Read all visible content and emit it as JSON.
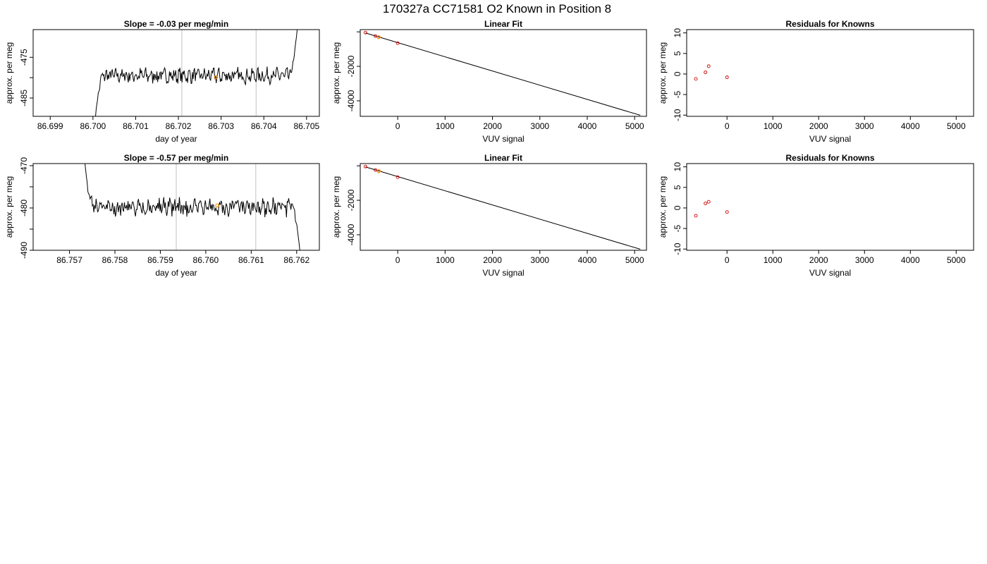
{
  "main_title": "170327a     CC71581   O2 Known in Position  8",
  "colors": {
    "line": "#000000",
    "vline": "#cccccc",
    "residual": "#cc0000",
    "highlight": "#ff9900",
    "frame": "#000000"
  },
  "chart_data": [
    {
      "type": "line",
      "title": "Slope =  -0.03  per meg/min",
      "xlabel": "day of year",
      "ylabel": "approx. per meg",
      "xlim": [
        86.6986,
        86.7053
      ],
      "ylim": [
        -489.5,
        -468.2
      ],
      "xticks": [
        "86.699",
        "86.700",
        "86.701",
        "86.702",
        "86.703",
        "86.704",
        "86.705"
      ],
      "yticks": [
        "-475",
        "-485"
      ],
      "yticks_minor": [
        -480
      ],
      "vlines": [
        86.70208,
        86.70382
      ],
      "highlight_point": {
        "x": 86.70288,
        "y": -479.9
      },
      "trace": {
        "x_start": 86.70006,
        "x_end": 86.70478,
        "y_first": -489.5,
        "y_last": -468.2,
        "level": -479.5,
        "amplitude": 1.5,
        "n": 290
      }
    },
    {
      "type": "scatter",
      "title": "Linear Fit",
      "xlabel": "VUV signal",
      "ylabel": "approx. per meg",
      "xlim": [
        -790,
        5250
      ],
      "ylim": [
        -4900,
        130
      ],
      "xticks": [
        "0",
        "1000",
        "2000",
        "3000",
        "4000",
        "5000"
      ],
      "yticks": [
        "-2000",
        "-4000"
      ],
      "yticks_minor": [
        0
      ],
      "fit_line": {
        "x": [
          -680,
          5120
        ],
        "y": [
          -65,
          -4840
        ]
      },
      "points": [
        {
          "x": -680,
          "y": -45
        },
        {
          "x": -470,
          "y": -245
        },
        {
          "x": -400,
          "y": -310
        },
        {
          "x": 0,
          "y": -660
        }
      ],
      "highlight_point": {
        "x": -400,
        "y": -310
      }
    },
    {
      "type": "scatter",
      "title": "Residuals for Knowns",
      "xlabel": "VUV signal",
      "ylabel": "approx. per meg",
      "xlim": [
        -880,
        5380
      ],
      "ylim": [
        -10.3,
        10.8
      ],
      "xticks": [
        "0",
        "1000",
        "2000",
        "3000",
        "4000",
        "5000"
      ],
      "yticks": [
        "10",
        "5",
        "0",
        "-5",
        "-10"
      ],
      "points": [
        {
          "x": -680,
          "y": -1.2
        },
        {
          "x": -470,
          "y": 0.4
        },
        {
          "x": -400,
          "y": 1.9
        },
        {
          "x": 0,
          "y": -0.8
        }
      ]
    },
    {
      "type": "line",
      "title": "Slope =  -0.57  per meg/min",
      "xlabel": "day of year",
      "ylabel": "approx. per meg",
      "xlim": [
        86.7562,
        86.7625
      ],
      "ylim": [
        -490,
        -469.5
      ],
      "xticks": [
        "86.757",
        "86.758",
        "86.759",
        "86.760",
        "86.761",
        "86.762"
      ],
      "yticks": [
        "-470",
        "-480",
        "-490"
      ],
      "yticks_minor": [
        -475,
        -485
      ],
      "vlines": [
        86.75935,
        86.7611
      ],
      "highlight_point": {
        "x": 86.76025,
        "y": -479.4
      },
      "trace": {
        "x_start": 86.75734,
        "x_end": 86.76207,
        "y_first": -469.5,
        "y_last": -490,
        "level": -479.8,
        "amplitude": 1.7,
        "n": 290
      }
    },
    {
      "type": "scatter",
      "title": "Linear Fit",
      "xlabel": "VUV signal",
      "ylabel": "approx. per meg",
      "xlim": [
        -790,
        5250
      ],
      "ylim": [
        -4900,
        130
      ],
      "xticks": [
        "0",
        "1000",
        "2000",
        "3000",
        "4000",
        "5000"
      ],
      "yticks": [
        "-2000",
        "-4000"
      ],
      "yticks_minor": [
        0
      ],
      "fit_line": {
        "x": [
          -680,
          5120
        ],
        "y": [
          -65,
          -4840
        ]
      },
      "points": [
        {
          "x": -680,
          "y": -45
        },
        {
          "x": -470,
          "y": -245
        },
        {
          "x": -400,
          "y": -310
        },
        {
          "x": 0,
          "y": -660
        }
      ],
      "highlight_point": {
        "x": -400,
        "y": -310
      }
    },
    {
      "type": "scatter",
      "title": "Residuals for Knowns",
      "xlabel": "VUV signal",
      "ylabel": "approx. per meg",
      "xlim": [
        -880,
        5380
      ],
      "ylim": [
        -10.3,
        10.8
      ],
      "xticks": [
        "0",
        "1000",
        "2000",
        "3000",
        "4000",
        "5000"
      ],
      "yticks": [
        "10",
        "5",
        "0",
        "-5",
        "-10"
      ],
      "points": [
        {
          "x": -680,
          "y": -1.9
        },
        {
          "x": -470,
          "y": 1.1
        },
        {
          "x": -400,
          "y": 1.5
        },
        {
          "x": 0,
          "y": -1.0
        }
      ]
    }
  ]
}
